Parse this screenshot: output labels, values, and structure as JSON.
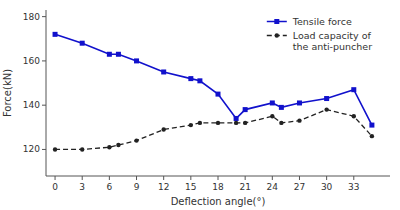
{
  "chart_data": {
    "type": "line",
    "x": [
      0,
      3,
      6,
      7,
      9,
      12,
      15,
      16,
      18,
      20,
      21,
      24,
      25,
      27,
      30,
      33,
      35
    ],
    "series": [
      {
        "name": "Tensile force",
        "color": "#1111cc",
        "marker": "square",
        "line_style": "solid",
        "values": [
          172,
          168,
          163,
          163,
          160,
          155,
          152,
          151,
          145,
          134,
          138,
          141,
          139,
          141,
          143,
          147,
          131
        ]
      },
      {
        "name": "Load capacity of\nthe anti-puncher",
        "color": "#222222",
        "marker": "circle",
        "line_style": "dashed",
        "values": [
          120,
          120,
          121,
          122,
          124,
          129,
          131,
          132,
          132,
          132,
          132,
          135,
          132,
          133,
          138,
          135,
          126
        ]
      }
    ],
    "xlim": [
      -1,
      37
    ],
    "ylim": [
      108,
      183
    ],
    "xticks": [
      0,
      3,
      6,
      9,
      12,
      15,
      18,
      21,
      24,
      27,
      30,
      33
    ],
    "yticks": [
      120,
      140,
      160,
      180
    ],
    "xlabel": "Deflection angle(°)",
    "ylabel": "Force(kN)",
    "grid": false,
    "legend": "upper right"
  }
}
